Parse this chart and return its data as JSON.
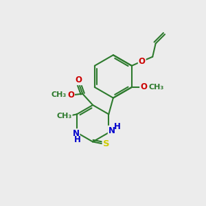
{
  "bg_color": "#ececec",
  "bond_color": "#2d7a2d",
  "bond_width": 1.5,
  "hetero_colors": {
    "O": "#cc0000",
    "N": "#0000cc",
    "S": "#cccc00"
  },
  "font_size": 8.5,
  "fig_size": [
    3.0,
    3.0
  ],
  "dpi": 100,
  "xlim": [
    0,
    10
  ],
  "ylim": [
    0,
    10
  ]
}
